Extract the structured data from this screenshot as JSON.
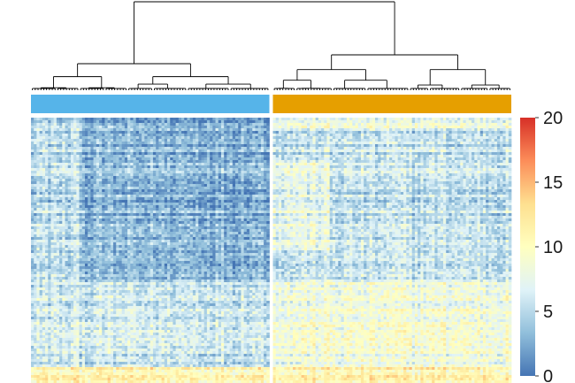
{
  "chart_data": {
    "type": "heatmap",
    "title": "",
    "xlabel": "",
    "ylabel": "",
    "grid": false,
    "dendrogram": "top",
    "clusters": [
      {
        "color": "#56b4e9",
        "columns": 84
      },
      {
        "color": "#e69f00",
        "columns": 84
      }
    ],
    "rows": 100,
    "colorbar": {
      "placement": "right",
      "range": [
        0,
        20
      ],
      "ticks": [
        {
          "value": 0,
          "label": "0"
        },
        {
          "value": 5,
          "label": "5"
        },
        {
          "value": 10,
          "label": "10"
        },
        {
          "value": 15,
          "label": "15"
        },
        {
          "value": 20,
          "label": "20"
        }
      ],
      "colors": [
        "#4575b4",
        "#91bfdb",
        "#e0f3f8",
        "#ffffbf",
        "#fee090",
        "#fc8d59",
        "#d73027"
      ]
    },
    "value_profile": {
      "cluster_1_background": 3.0,
      "cluster_2_background": 5.5,
      "lower_band_start_fraction": 0.62,
      "lower_band_value": 7.5,
      "bottom_strip_value": 11.0
    }
  }
}
